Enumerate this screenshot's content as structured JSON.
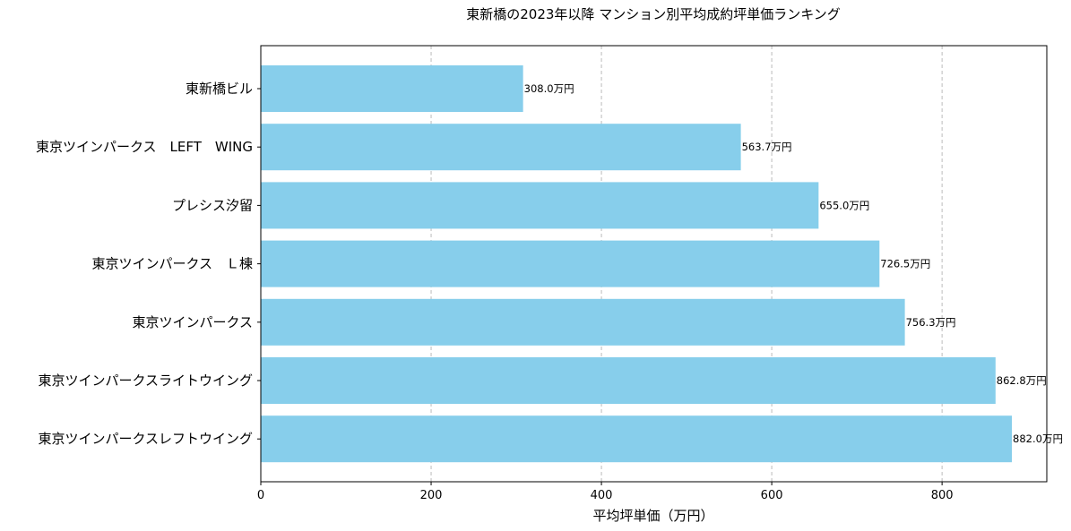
{
  "chart_data": {
    "type": "bar",
    "orientation": "horizontal",
    "title": "東新橋の2023年以降 マンション別平均成約坪単価ランキング",
    "xlabel": "平均坪単価（万円）",
    "ylabel": "",
    "xlim": [
      0,
      923
    ],
    "xticks": [
      0,
      200,
      400,
      600,
      800
    ],
    "grid": "x-dashed",
    "bar_color": "#87CEEB",
    "categories": [
      "東新橋ビル",
      "東京ツインパークス　LEFT　WING",
      "プレシス汐留",
      "東京ツインパークス　Ｌ棟",
      "東京ツインパークス",
      "東京ツインパークスライトウイング",
      "東京ツインパークスレフトウイング"
    ],
    "values": [
      308.0,
      563.7,
      655.0,
      726.5,
      756.3,
      862.8,
      882.0
    ],
    "data_labels": [
      "308.0万円",
      "563.7万円",
      "655.0万円",
      "726.5万円",
      "756.3万円",
      "862.8万円",
      "882.0万円"
    ]
  }
}
